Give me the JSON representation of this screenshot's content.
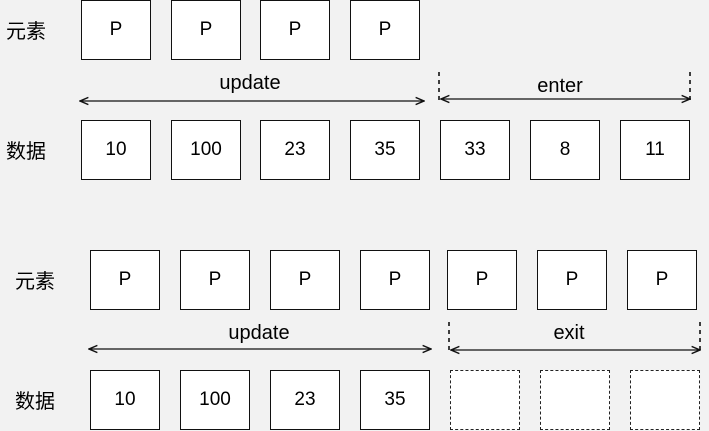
{
  "diagram1": {
    "label_elements": "元素",
    "label_data": "数据",
    "elements": [
      "P",
      "P",
      "P",
      "P"
    ],
    "data": [
      "10",
      "100",
      "23",
      "35",
      "33",
      "8",
      "11"
    ],
    "update_label": "update",
    "enter_label": "enter"
  },
  "diagram2": {
    "label_elements": "元素",
    "label_data": "数据",
    "elements": [
      "P",
      "P",
      "P",
      "P",
      "P",
      "P",
      "P"
    ],
    "data": [
      "10",
      "100",
      "23",
      "35",
      "",
      "",
      ""
    ],
    "update_label": "update",
    "exit_label": "exit"
  }
}
